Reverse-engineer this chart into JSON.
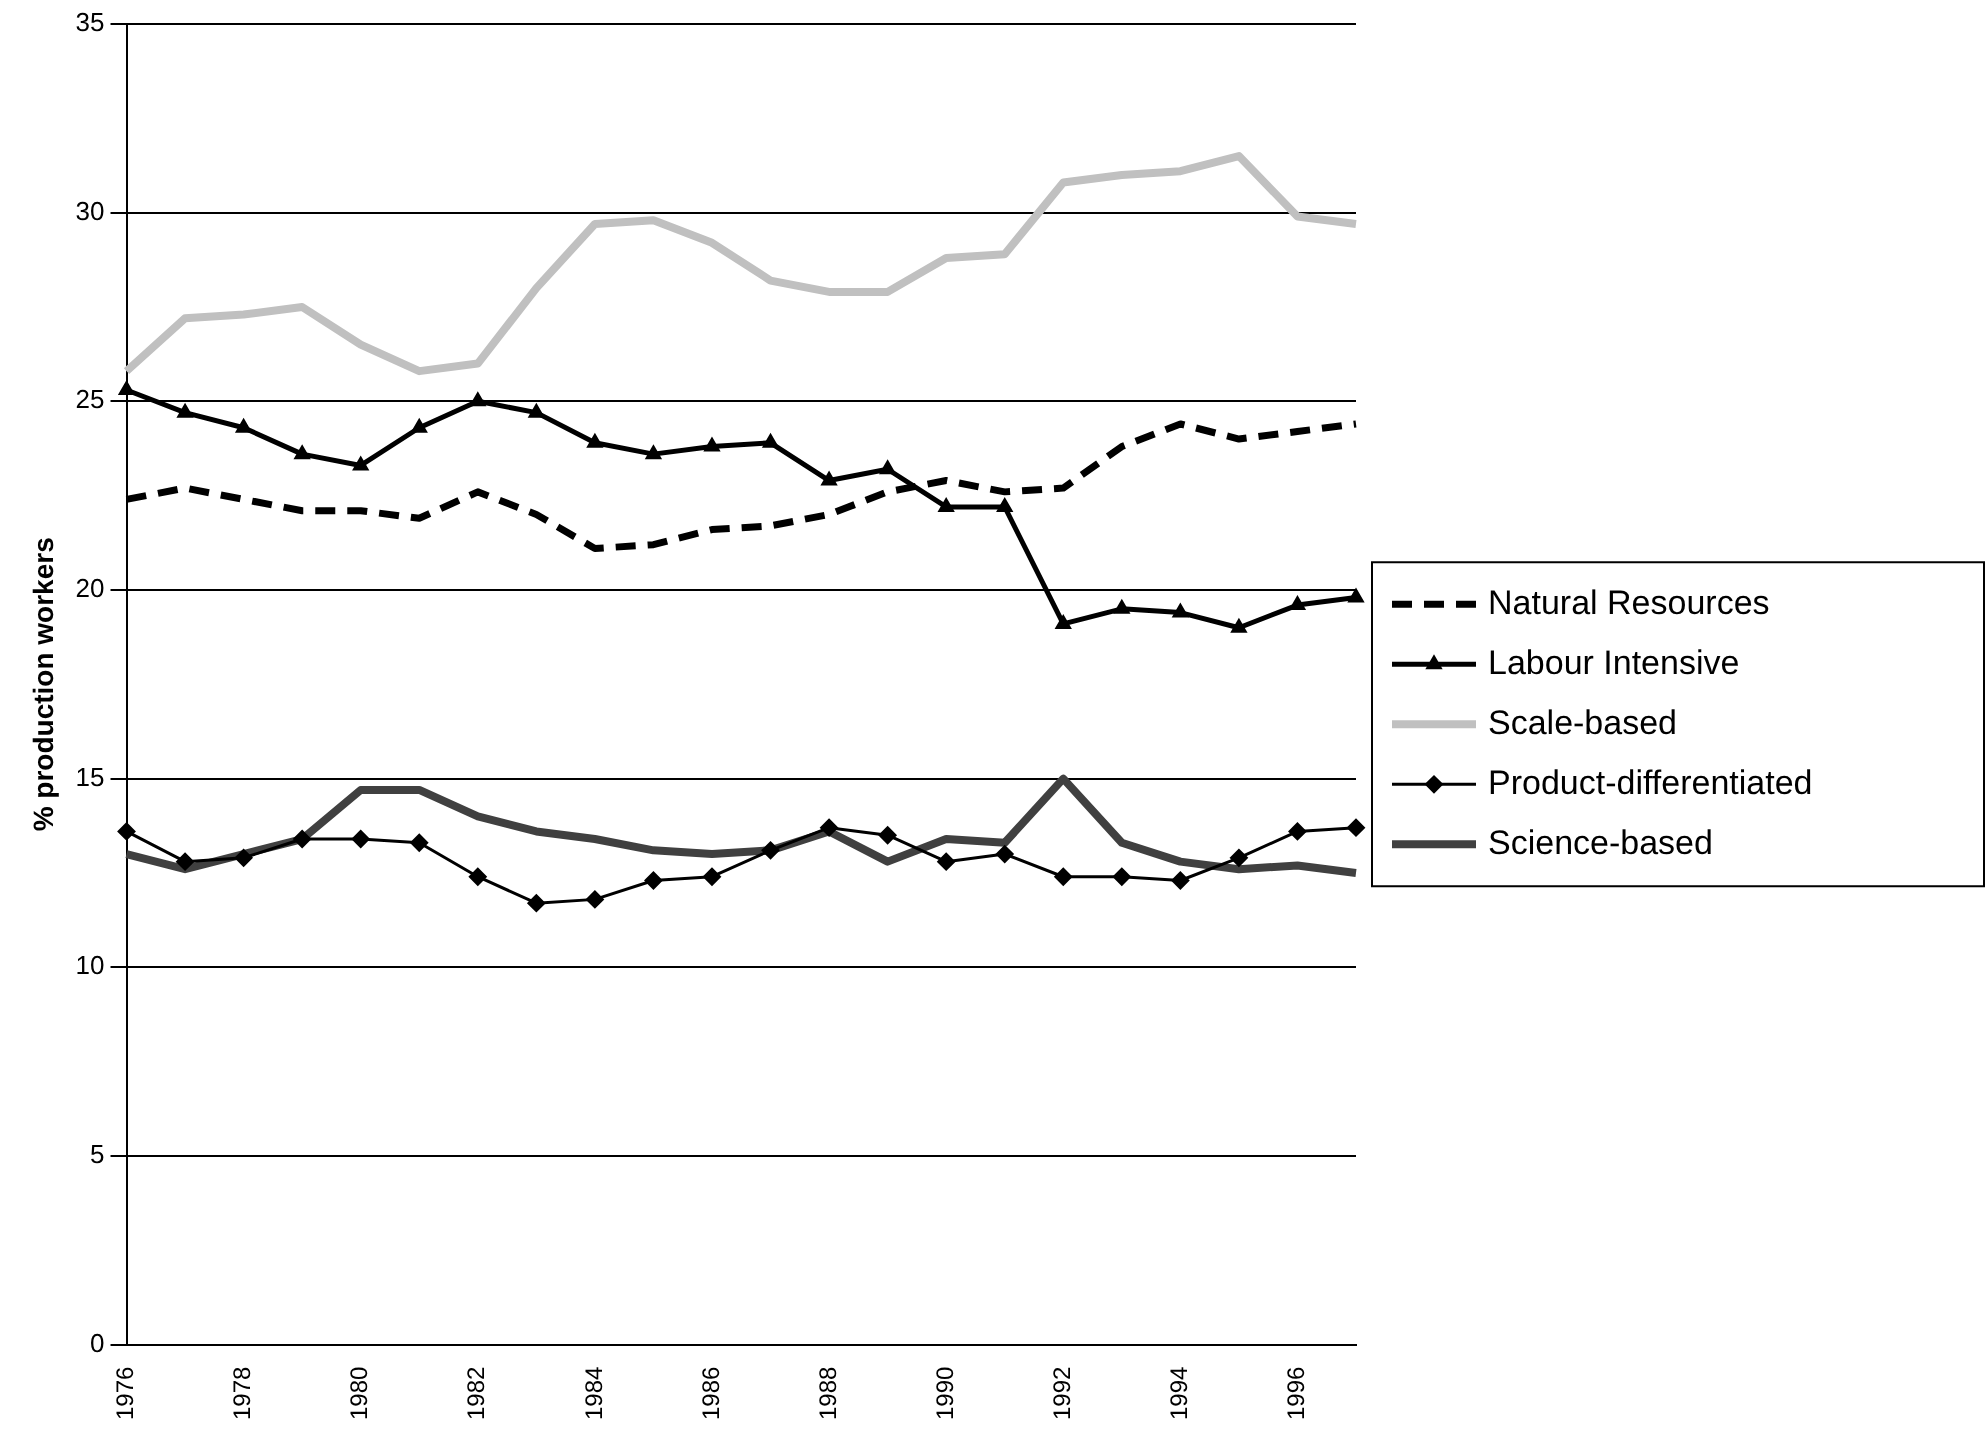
{
  "chart_data": {
    "type": "line",
    "ylabel": "% production workers",
    "categories": [
      "1976",
      null,
      "1978",
      null,
      "1980",
      null,
      "1982",
      null,
      "1984",
      null,
      "1986",
      null,
      "1988",
      null,
      "1990",
      null,
      "1992",
      null,
      "1994",
      null,
      "1996",
      null
    ],
    "ylim": [
      0,
      35
    ],
    "yticks": [
      0,
      5,
      10,
      15,
      20,
      25,
      30,
      35
    ],
    "grid": "y",
    "legend": "right",
    "series": [
      {
        "name": "Natural Resources",
        "color": "#000000",
        "line_style": "dashed",
        "marker": "none",
        "values": [
          22.4,
          22.7,
          22.4,
          22.1,
          22.1,
          21.9,
          22.6,
          22.0,
          21.1,
          21.2,
          21.6,
          21.7,
          22.0,
          22.6,
          22.9,
          22.6,
          22.7,
          23.8,
          24.4,
          24.0,
          24.2,
          24.4
        ]
      },
      {
        "name": "Labour Intensive",
        "color": "#000000",
        "line_style": "solid",
        "marker": "triangle",
        "values": [
          25.3,
          24.7,
          24.3,
          23.6,
          23.3,
          24.3,
          25.0,
          24.7,
          23.9,
          23.6,
          23.8,
          23.9,
          22.9,
          23.2,
          22.2,
          22.2,
          19.1,
          19.5,
          19.4,
          19.0,
          19.6,
          19.8
        ]
      },
      {
        "name": "Scale-based",
        "color": "#c0c0c0",
        "line_style": "solid",
        "marker": "none",
        "values": [
          25.8,
          27.2,
          27.3,
          27.5,
          26.5,
          25.8,
          26.0,
          28.0,
          29.7,
          29.8,
          29.2,
          28.2,
          27.9,
          27.9,
          28.8,
          28.9,
          30.8,
          31.0,
          31.1,
          31.5,
          29.9,
          29.7
        ]
      },
      {
        "name": "Product-differentiated",
        "color": "#000000",
        "line_style": "solid",
        "marker": "diamond",
        "values": [
          13.6,
          12.8,
          12.9,
          13.4,
          13.4,
          13.3,
          12.4,
          11.7,
          11.8,
          12.3,
          12.4,
          13.1,
          13.7,
          13.5,
          12.8,
          13.0,
          12.4,
          12.4,
          12.3,
          12.9,
          13.6,
          13.7
        ]
      },
      {
        "name": "Science-based",
        "color": "#404040",
        "line_style": "solid",
        "marker": "none",
        "values": [
          13.0,
          12.6,
          13.0,
          13.4,
          14.7,
          14.7,
          14.0,
          13.6,
          13.4,
          13.1,
          13.0,
          13.1,
          13.6,
          12.8,
          13.4,
          13.3,
          15.0,
          13.3,
          12.8,
          12.6,
          12.7,
          12.5
        ]
      }
    ]
  }
}
